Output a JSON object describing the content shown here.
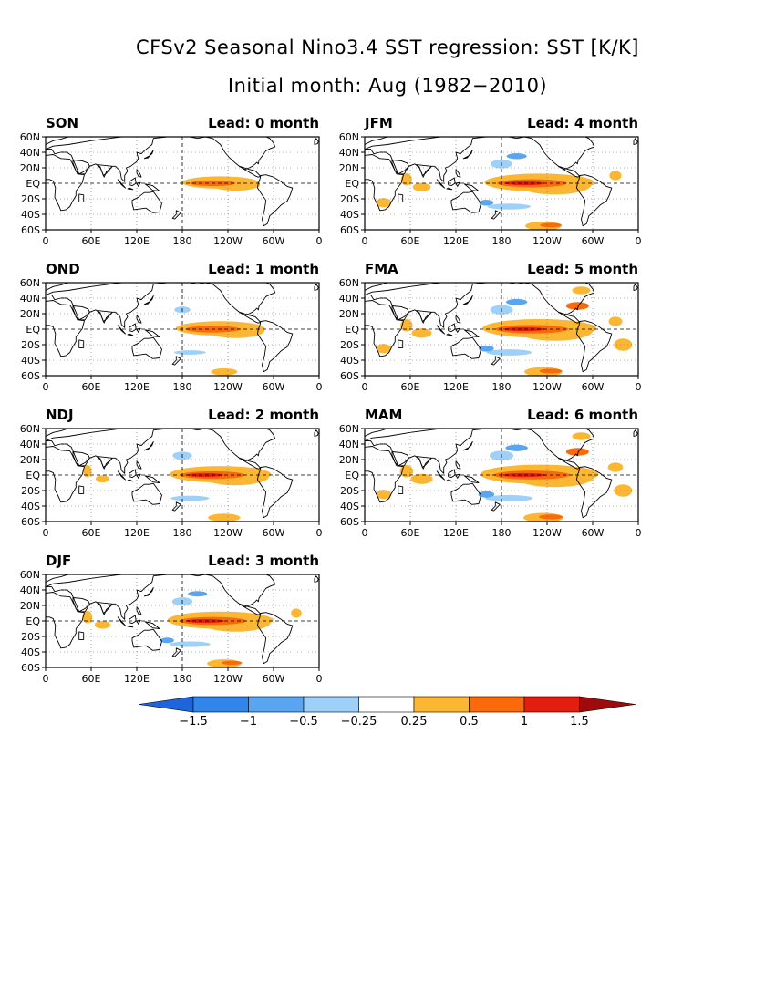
{
  "title": "CFSv2 Seasonal Nino3.4 SST regression: SST [K/K]",
  "subtitle": "Initial month: Aug (1982−2010)",
  "lead_word": "Lead:",
  "lead_unit": "month",
  "lat_ticks": [
    "60N",
    "40N",
    "20N",
    "EQ",
    "20S",
    "40S",
    "60S"
  ],
  "lon_ticks": [
    "0",
    "60E",
    "120E",
    "180",
    "120W",
    "60W",
    "0"
  ],
  "panels": [
    {
      "season": "SON",
      "lead": "0",
      "col": 0,
      "row": 0,
      "strength": 0.55
    },
    {
      "season": "OND",
      "lead": "1",
      "col": 0,
      "row": 1,
      "strength": 0.7
    },
    {
      "season": "NDJ",
      "lead": "2",
      "col": 0,
      "row": 2,
      "strength": 0.85
    },
    {
      "season": "DJF",
      "lead": "3",
      "col": 0,
      "row": 3,
      "strength": 0.9
    },
    {
      "season": "JFM",
      "lead": "4",
      "col": 1,
      "row": 0,
      "strength": 0.95
    },
    {
      "season": "FMA",
      "lead": "5",
      "col": 1,
      "row": 1,
      "strength": 1.0
    },
    {
      "season": "MAM",
      "lead": "6",
      "col": 1,
      "row": 2,
      "strength": 1.05
    }
  ],
  "colorbar": {
    "labels": [
      "−1.5",
      "−1",
      "−0.5",
      "−0.25",
      "0.25",
      "0.5",
      "1",
      "1.5"
    ],
    "colors": [
      "#1e64dc",
      "#3286ea",
      "#5aa5f0",
      "#9fd0f8",
      "#ffffff",
      "#fbb734",
      "#fa6a0a",
      "#e21e0e",
      "#a00a0a"
    ]
  }
}
